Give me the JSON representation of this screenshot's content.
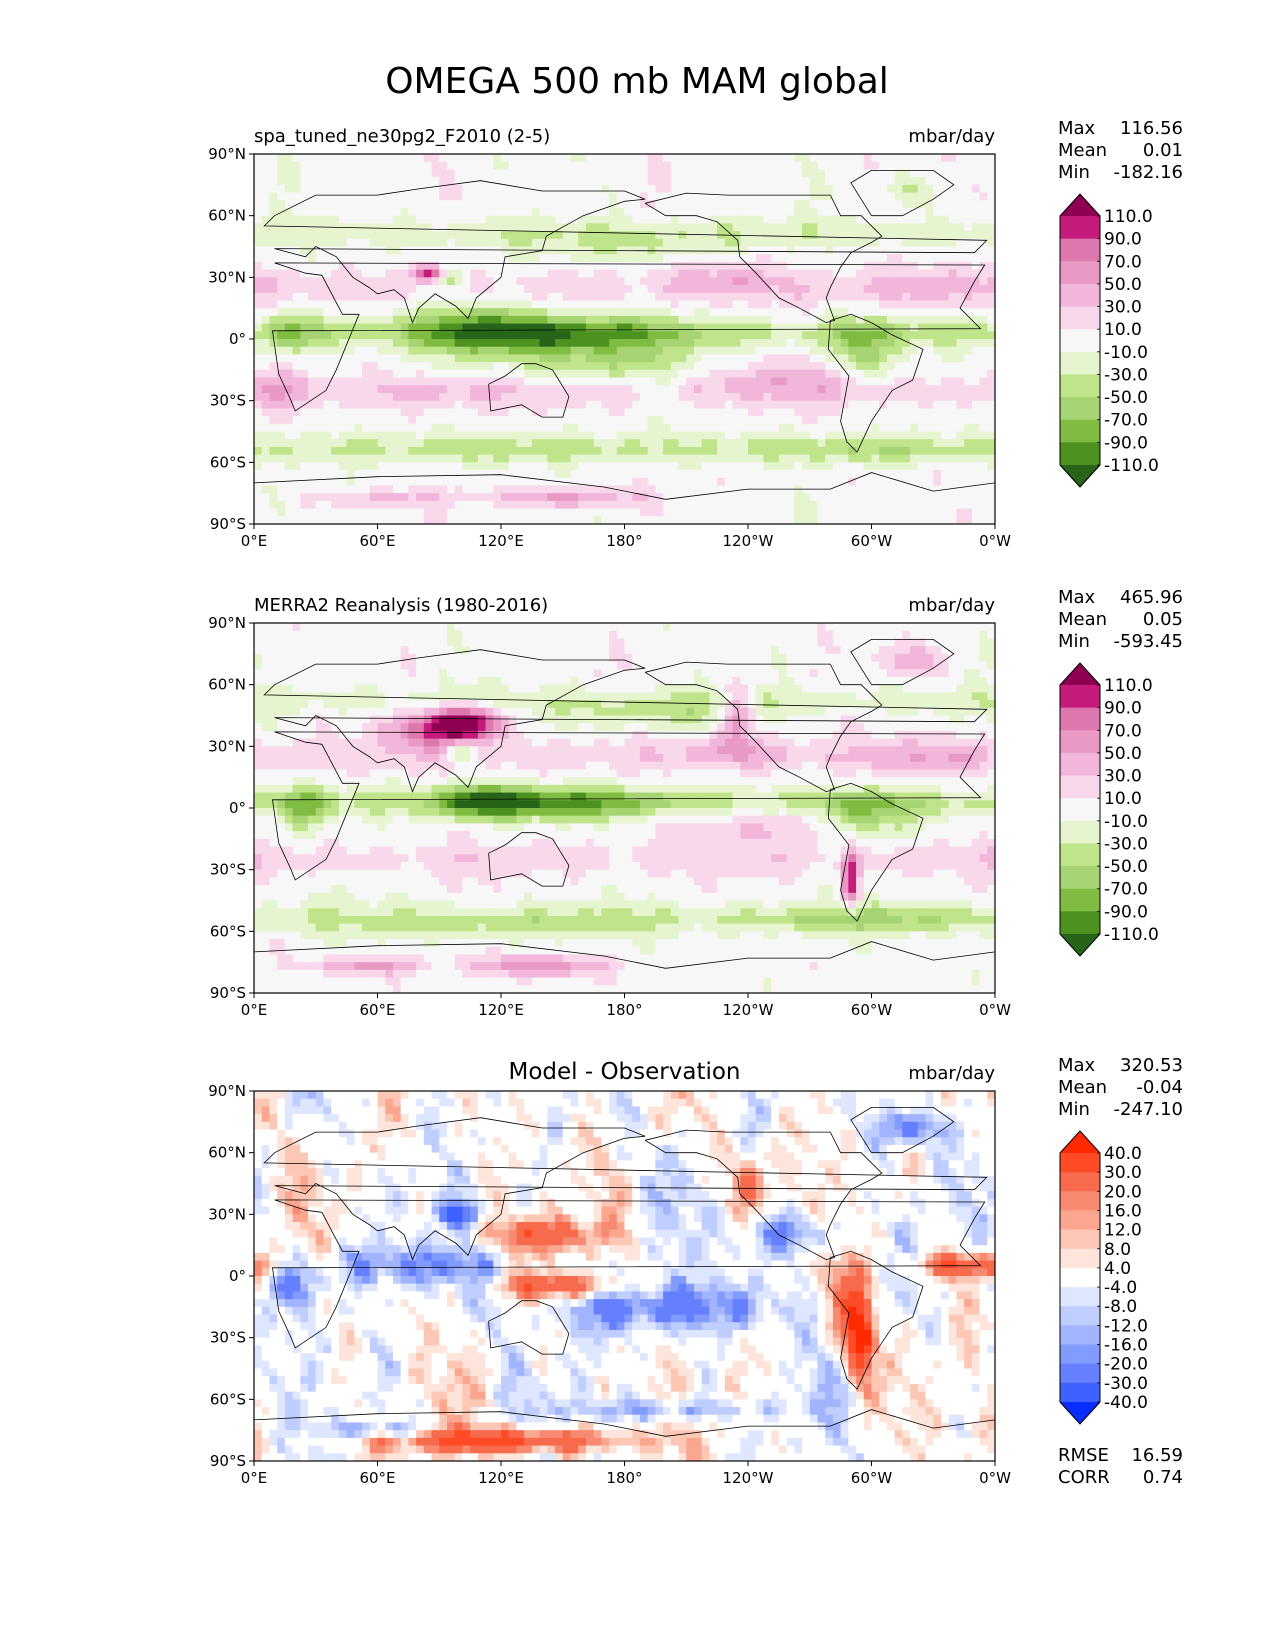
{
  "figure_title": "OMEGA 500 mb MAM global",
  "chart_data": [
    {
      "type": "heatmap",
      "title": "spa_tuned_ne30pg2_F2010 (2-5)",
      "units": "mbar/day",
      "stats": [
        {
          "label": "Max",
          "value": "116.56"
        },
        {
          "label": "Mean",
          "value": "0.01"
        },
        {
          "label": "Min",
          "value": "-182.16"
        }
      ],
      "colorbar": {
        "levels": [
          "110.0",
          "90.0",
          "70.0",
          "50.0",
          "30.0",
          "10.0",
          "-10.0",
          "-30.0",
          "-50.0",
          "-70.0",
          "-90.0",
          "-110.0"
        ],
        "colors": [
          "#8e0152",
          "#c51b7d",
          "#de77ae",
          "#e899c4",
          "#f1b6da",
          "#f8d8ea",
          "#f7f7f7",
          "#e6f5d0",
          "#c0e48a",
          "#a6d472",
          "#7fbc41",
          "#4d9221",
          "#276419"
        ],
        "extend": "both"
      },
      "x_ticks": [
        "0°E",
        "60°E",
        "120°E",
        "180°",
        "120°W",
        "60°W",
        "0°W"
      ],
      "y_ticks": [
        "90°N",
        "60°N",
        "30°N",
        "0°",
        "30°S",
        "60°S",
        "90°S"
      ],
      "xlim": [
        0,
        360
      ],
      "ylim": [
        -90,
        90
      ],
      "field": "positive",
      "features": [
        {
          "lon": 150,
          "lat": 2,
          "w": 55,
          "h": 10,
          "v": -75
        },
        {
          "lon": 110,
          "lat": 5,
          "w": 30,
          "h": 15,
          "v": -55
        },
        {
          "lon": 20,
          "lat": 3,
          "w": 14,
          "h": 12,
          "v": -50
        },
        {
          "lon": 295,
          "lat": -5,
          "w": 18,
          "h": 14,
          "v": -55
        },
        {
          "lon": 170,
          "lat": -12,
          "w": 40,
          "h": 10,
          "v": -45
        },
        {
          "lon": 85,
          "lat": 32,
          "w": 10,
          "h": 4,
          "v": 90
        },
        {
          "lon": 95,
          "lat": 30,
          "w": 6,
          "h": 5,
          "v": -70
        },
        {
          "lon": 150,
          "lat": -77,
          "w": 35,
          "h": 5,
          "v": 60
        },
        {
          "lon": 60,
          "lat": -78,
          "w": 30,
          "h": 4,
          "v": 40
        },
        {
          "lon": 320,
          "lat": 72,
          "w": 12,
          "h": 8,
          "v": -35
        },
        {
          "lon": 230,
          "lat": 30,
          "w": 25,
          "h": 10,
          "v": 35
        },
        {
          "lon": 330,
          "lat": 25,
          "w": 30,
          "h": 12,
          "v": 30
        },
        {
          "lon": 300,
          "lat": -55,
          "w": 60,
          "h": 6,
          "v": -30
        },
        {
          "lon": 120,
          "lat": -55,
          "w": 80,
          "h": 6,
          "v": -25
        },
        {
          "lon": 180,
          "lat": 45,
          "w": 60,
          "h": 8,
          "v": -25
        },
        {
          "lon": 10,
          "lat": -25,
          "w": 10,
          "h": 10,
          "v": 35
        },
        {
          "lon": 260,
          "lat": -20,
          "w": 40,
          "h": 10,
          "v": 30
        },
        {
          "lon": 90,
          "lat": -25,
          "w": 40,
          "h": 10,
          "v": 20
        }
      ]
    },
    {
      "type": "heatmap",
      "title": "MERRA2 Reanalysis (1980-2016)",
      "units": "mbar/day",
      "stats": [
        {
          "label": "Max",
          "value": "465.96"
        },
        {
          "label": "Mean",
          "value": "0.05"
        },
        {
          "label": "Min",
          "value": "-593.45"
        }
      ],
      "colorbar": {
        "levels": [
          "110.0",
          "90.0",
          "70.0",
          "50.0",
          "30.0",
          "10.0",
          "-10.0",
          "-30.0",
          "-50.0",
          "-70.0",
          "-90.0",
          "-110.0"
        ],
        "colors": [
          "#8e0152",
          "#c51b7d",
          "#de77ae",
          "#e899c4",
          "#f1b6da",
          "#f8d8ea",
          "#f7f7f7",
          "#e6f5d0",
          "#c0e48a",
          "#a6d472",
          "#7fbc41",
          "#4d9221",
          "#276419"
        ],
        "extend": "both"
      },
      "x_ticks": [
        "0°E",
        "60°E",
        "120°E",
        "180°",
        "120°W",
        "60°W",
        "0°W"
      ],
      "y_ticks": [
        "90°N",
        "60°N",
        "30°N",
        "0°",
        "30°S",
        "60°S",
        "90°S"
      ],
      "xlim": [
        0,
        360
      ],
      "ylim": [
        -90,
        90
      ],
      "field": "positive",
      "features": [
        {
          "lon": 150,
          "lat": 2,
          "w": 45,
          "h": 8,
          "v": -70
        },
        {
          "lon": 110,
          "lat": 3,
          "w": 20,
          "h": 8,
          "v": -80
        },
        {
          "lon": 25,
          "lat": 0,
          "w": 12,
          "h": 10,
          "v": -55
        },
        {
          "lon": 300,
          "lat": -3,
          "w": 20,
          "h": 12,
          "v": -60
        },
        {
          "lon": 90,
          "lat": 38,
          "w": 25,
          "h": 10,
          "v": 90
        },
        {
          "lon": 105,
          "lat": 42,
          "w": 15,
          "h": 8,
          "v": 100
        },
        {
          "lon": 235,
          "lat": 45,
          "w": 8,
          "h": 12,
          "v": 80
        },
        {
          "lon": 290,
          "lat": -35,
          "w": 4,
          "h": 14,
          "v": 110
        },
        {
          "lon": 140,
          "lat": -77,
          "w": 30,
          "h": 5,
          "v": 70
        },
        {
          "lon": 55,
          "lat": -77,
          "w": 25,
          "h": 4,
          "v": 60
        },
        {
          "lon": 320,
          "lat": 72,
          "w": 14,
          "h": 8,
          "v": 45
        },
        {
          "lon": 230,
          "lat": 28,
          "w": 25,
          "h": 8,
          "v": 40
        },
        {
          "lon": 330,
          "lat": 25,
          "w": 30,
          "h": 10,
          "v": 35
        },
        {
          "lon": 300,
          "lat": -55,
          "w": 60,
          "h": 6,
          "v": -40
        },
        {
          "lon": 120,
          "lat": -58,
          "w": 80,
          "h": 6,
          "v": -35
        },
        {
          "lon": 190,
          "lat": 45,
          "w": 50,
          "h": 8,
          "v": -30
        },
        {
          "lon": 100,
          "lat": 28,
          "w": 8,
          "h": 5,
          "v": -70
        },
        {
          "lon": 240,
          "lat": -10,
          "w": 50,
          "h": 8,
          "v": 30
        }
      ]
    },
    {
      "type": "heatmap",
      "title": "Model - Observation",
      "units": "mbar/day",
      "stats": [
        {
          "label": "Max",
          "value": "320.53"
        },
        {
          "label": "Mean",
          "value": "-0.04"
        },
        {
          "label": "Min",
          "value": "-247.10"
        }
      ],
      "colorbar": {
        "levels": [
          "40.0",
          "30.0",
          "20.0",
          "16.0",
          "12.0",
          "8.0",
          "4.0",
          "-4.0",
          "-8.0",
          "-12.0",
          "-16.0",
          "-20.0",
          "-30.0",
          "-40.0"
        ],
        "colors": [
          "#ff2a00",
          "#ff4a26",
          "#f76a4c",
          "#f78a70",
          "#fba790",
          "#fdc7b5",
          "#fee5dc",
          "#ffffff",
          "#dfe6ff",
          "#c0cdff",
          "#a3b4ff",
          "#829bff",
          "#6480ff",
          "#3f62ff",
          "#0a2dff"
        ],
        "extend": "both"
      },
      "x_ticks": [
        "0°E",
        "60°E",
        "120°E",
        "180°",
        "120°W",
        "60°W",
        "0°W"
      ],
      "y_ticks": [
        "90°N",
        "60°N",
        "30°N",
        "0°",
        "30°S",
        "60°S",
        "90°S"
      ],
      "xlim": [
        0,
        360
      ],
      "ylim": [
        -90,
        90
      ],
      "field": "diverging",
      "features": [
        {
          "lon": 75,
          "lat": 5,
          "w": 40,
          "h": 10,
          "v": -20
        },
        {
          "lon": 200,
          "lat": -15,
          "w": 50,
          "h": 12,
          "v": -25
        },
        {
          "lon": 140,
          "lat": 20,
          "w": 30,
          "h": 8,
          "v": 25
        },
        {
          "lon": 150,
          "lat": -5,
          "w": 30,
          "h": 6,
          "v": 30
        },
        {
          "lon": 345,
          "lat": 5,
          "w": 25,
          "h": 6,
          "v": 30
        },
        {
          "lon": 120,
          "lat": -80,
          "w": 60,
          "h": 6,
          "v": 35
        },
        {
          "lon": 295,
          "lat": -30,
          "w": 6,
          "h": 20,
          "v": 40
        },
        {
          "lon": 20,
          "lat": -5,
          "w": 12,
          "h": 12,
          "v": -20
        },
        {
          "lon": 260,
          "lat": 20,
          "w": 25,
          "h": 10,
          "v": -20
        },
        {
          "lon": 100,
          "lat": 30,
          "w": 10,
          "h": 6,
          "v": -30
        },
        {
          "lon": 320,
          "lat": 72,
          "w": 15,
          "h": 8,
          "v": -25
        },
        {
          "lon": 60,
          "lat": -75,
          "w": 25,
          "h": 4,
          "v": -20
        },
        {
          "lon": 200,
          "lat": -65,
          "w": 50,
          "h": 5,
          "v": -16
        },
        {
          "lon": 290,
          "lat": -15,
          "w": 10,
          "h": 25,
          "v": 20
        },
        {
          "lon": 240,
          "lat": 45,
          "w": 8,
          "h": 15,
          "v": 20
        }
      ],
      "summary": [
        {
          "label": "RMSE",
          "value": "16.59"
        },
        {
          "label": "CORR",
          "value": "0.74"
        }
      ]
    }
  ]
}
